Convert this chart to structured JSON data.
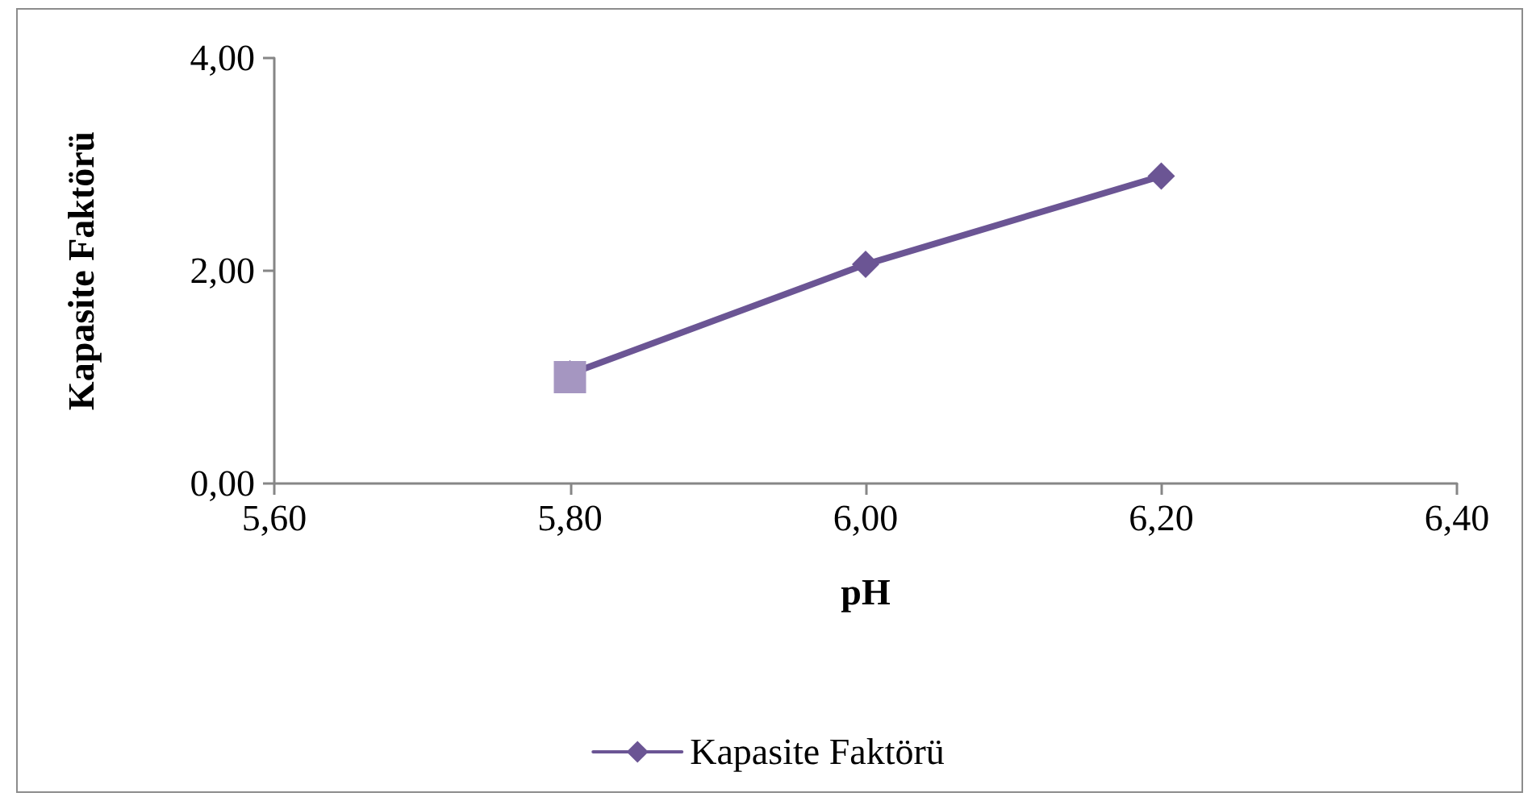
{
  "chart_data": {
    "type": "line",
    "xlabel": "pH",
    "ylabel": "Kapasite Faktörü",
    "x": [
      5.8,
      6.0,
      6.2
    ],
    "series": [
      {
        "name": "Kapasite Faktörü",
        "color": "#6b5594",
        "values": [
          1.03,
          2.06,
          2.89
        ],
        "marker": "diamond"
      },
      {
        "type": "scatter",
        "color": "#a596c1",
        "x": [
          5.8
        ],
        "values": [
          1.0
        ],
        "marker": "square"
      }
    ],
    "xlim": [
      5.6,
      6.4
    ],
    "xticks": [
      {
        "value": 5.6,
        "label": "5,60"
      },
      {
        "value": 5.8,
        "label": "5,80"
      },
      {
        "value": 6.0,
        "label": "6,00"
      },
      {
        "value": 6.2,
        "label": "6,20"
      },
      {
        "value": 6.4,
        "label": "6,40"
      }
    ],
    "ylim": [
      0,
      4
    ],
    "yticks": [
      {
        "value": 0,
        "label": "0,00"
      },
      {
        "value": 2,
        "label": "2,00"
      },
      {
        "value": 4,
        "label": "4,00"
      }
    ],
    "grid": false,
    "legend": "bottom",
    "line_style": "solid"
  }
}
